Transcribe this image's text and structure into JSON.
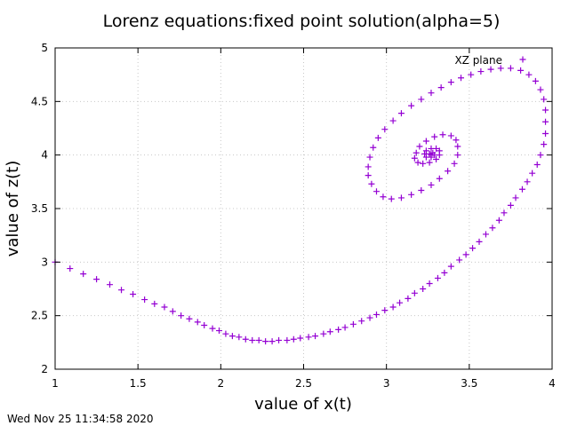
{
  "chart_data": {
    "type": "scatter",
    "title": "Lorenz equations:fixed point solution(alpha=5)",
    "xlabel": "value of x(t)",
    "ylabel": "value of z(t)",
    "xlim": [
      1,
      4
    ],
    "ylim": [
      2,
      5
    ],
    "xticks": [
      "1",
      "1.5",
      "2",
      "2.5",
      "3",
      "3.5",
      "4"
    ],
    "yticks": [
      "2",
      "2.5",
      "3",
      "3.5",
      "4",
      "4.5",
      "5"
    ],
    "grid": true,
    "legend_position": "top-right",
    "marker": "plus",
    "series": [
      {
        "name": "XZ plane",
        "color": "#9400d3",
        "points": [
          [
            1.0,
            3.0
          ],
          [
            1.09,
            2.94
          ],
          [
            1.17,
            2.89
          ],
          [
            1.25,
            2.84
          ],
          [
            1.33,
            2.79
          ],
          [
            1.4,
            2.74
          ],
          [
            1.47,
            2.7
          ],
          [
            1.54,
            2.65
          ],
          [
            1.6,
            2.61
          ],
          [
            1.66,
            2.58
          ],
          [
            1.71,
            2.54
          ],
          [
            1.76,
            2.5
          ],
          [
            1.81,
            2.47
          ],
          [
            1.86,
            2.44
          ],
          [
            1.9,
            2.41
          ],
          [
            1.95,
            2.38
          ],
          [
            1.99,
            2.36
          ],
          [
            2.03,
            2.33
          ],
          [
            2.07,
            2.31
          ],
          [
            2.11,
            2.3
          ],
          [
            2.15,
            2.28
          ],
          [
            2.19,
            2.27
          ],
          [
            2.23,
            2.27
          ],
          [
            2.27,
            2.26
          ],
          [
            2.31,
            2.26
          ],
          [
            2.35,
            2.27
          ],
          [
            2.4,
            2.27
          ],
          [
            2.44,
            2.28
          ],
          [
            2.48,
            2.29
          ],
          [
            2.53,
            2.3
          ],
          [
            2.57,
            2.31
          ],
          [
            2.62,
            2.33
          ],
          [
            2.66,
            2.35
          ],
          [
            2.71,
            2.37
          ],
          [
            2.75,
            2.39
          ],
          [
            2.8,
            2.42
          ],
          [
            2.85,
            2.45
          ],
          [
            2.9,
            2.48
          ],
          [
            2.94,
            2.51
          ],
          [
            2.99,
            2.55
          ],
          [
            3.04,
            2.58
          ],
          [
            3.08,
            2.62
          ],
          [
            3.13,
            2.66
          ],
          [
            3.17,
            2.71
          ],
          [
            3.22,
            2.75
          ],
          [
            3.26,
            2.8
          ],
          [
            3.31,
            2.85
          ],
          [
            3.35,
            2.9
          ],
          [
            3.39,
            2.96
          ],
          [
            3.44,
            3.02
          ],
          [
            3.48,
            3.07
          ],
          [
            3.52,
            3.13
          ],
          [
            3.56,
            3.19
          ],
          [
            3.6,
            3.26
          ],
          [
            3.64,
            3.32
          ],
          [
            3.68,
            3.39
          ],
          [
            3.71,
            3.46
          ],
          [
            3.75,
            3.53
          ],
          [
            3.78,
            3.6
          ],
          [
            3.82,
            3.68
          ],
          [
            3.85,
            3.75
          ],
          [
            3.88,
            3.83
          ],
          [
            3.91,
            3.91
          ],
          [
            3.93,
            4.0
          ],
          [
            3.95,
            4.1
          ],
          [
            3.96,
            4.2
          ],
          [
            3.96,
            4.31
          ],
          [
            3.96,
            4.42
          ],
          [
            3.95,
            4.52
          ],
          [
            3.93,
            4.61
          ],
          [
            3.9,
            4.69
          ],
          [
            3.86,
            4.75
          ],
          [
            3.81,
            4.79
          ],
          [
            3.75,
            4.81
          ],
          [
            3.69,
            4.81
          ],
          [
            3.63,
            4.8
          ],
          [
            3.57,
            4.78
          ],
          [
            3.51,
            4.75
          ],
          [
            3.45,
            4.72
          ],
          [
            3.39,
            4.68
          ],
          [
            3.33,
            4.63
          ],
          [
            3.27,
            4.58
          ],
          [
            3.21,
            4.52
          ],
          [
            3.15,
            4.46
          ],
          [
            3.09,
            4.39
          ],
          [
            3.04,
            4.32
          ],
          [
            2.99,
            4.24
          ],
          [
            2.95,
            4.16
          ],
          [
            2.92,
            4.07
          ],
          [
            2.9,
            3.98
          ],
          [
            2.89,
            3.89
          ],
          [
            2.89,
            3.81
          ],
          [
            2.91,
            3.73
          ],
          [
            2.94,
            3.66
          ],
          [
            2.98,
            3.61
          ],
          [
            3.03,
            3.59
          ],
          [
            3.09,
            3.6
          ],
          [
            3.15,
            3.63
          ],
          [
            3.21,
            3.67
          ],
          [
            3.27,
            3.72
          ],
          [
            3.32,
            3.78
          ],
          [
            3.37,
            3.85
          ],
          [
            3.41,
            3.92
          ],
          [
            3.43,
            4.0
          ],
          [
            3.43,
            4.08
          ],
          [
            3.42,
            4.14
          ],
          [
            3.39,
            4.18
          ],
          [
            3.34,
            4.19
          ],
          [
            3.29,
            4.17
          ],
          [
            3.24,
            4.13
          ],
          [
            3.2,
            4.08
          ],
          [
            3.18,
            4.02
          ],
          [
            3.17,
            3.97
          ],
          [
            3.19,
            3.93
          ],
          [
            3.22,
            3.92
          ],
          [
            3.26,
            3.93
          ],
          [
            3.3,
            3.96
          ],
          [
            3.32,
            4.0
          ],
          [
            3.32,
            4.04
          ],
          [
            3.3,
            4.06
          ],
          [
            3.27,
            4.06
          ],
          [
            3.24,
            4.04
          ],
          [
            3.23,
            4.01
          ],
          [
            3.24,
            3.98
          ],
          [
            3.27,
            3.98
          ],
          [
            3.29,
            4.0
          ],
          [
            3.28,
            4.02
          ],
          [
            3.26,
            4.01
          ],
          [
            3.27,
            4.0
          ]
        ]
      }
    ]
  },
  "timestamp": "Wed Nov 25 11:34:58 2020"
}
